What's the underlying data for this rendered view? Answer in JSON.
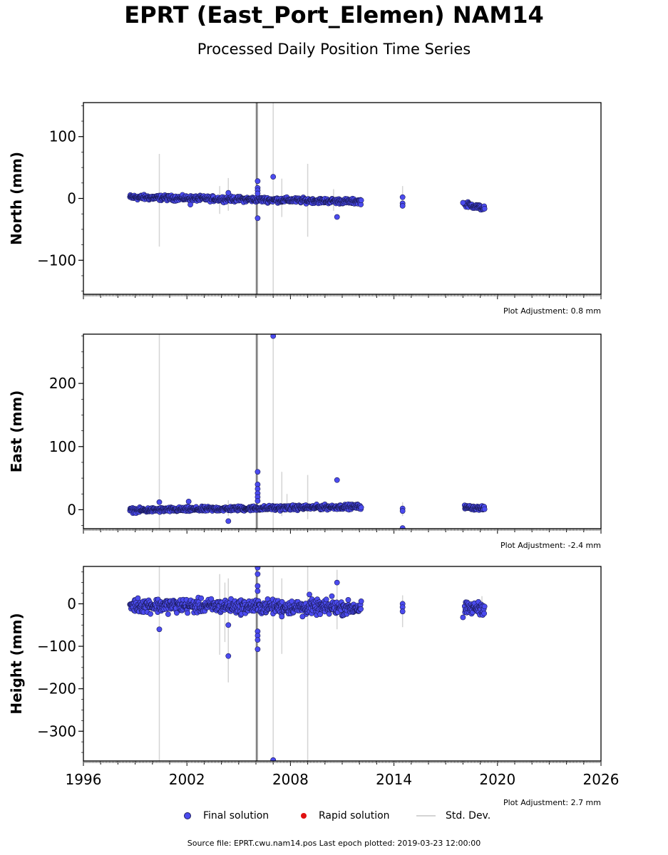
{
  "title": "EPRT (East_Port_Elemen) NAM14",
  "subtitle": "Processed Daily Position Time Series",
  "legend": {
    "final": "Final solution",
    "rapid": "Rapid solution",
    "std": "Std. Dev."
  },
  "footer": "Source file: EPRT.cwu.nam14.pos  Last epoch plotted: 2019-03-23 12:00:00",
  "colors": {
    "final_fill": "#4b4bef",
    "final_edge": "#1a1a55",
    "rapid": "#e01010",
    "std_dev": "#d4d4d4"
  },
  "chart_data": [
    {
      "type": "scatter",
      "ylabel": "North (mm)",
      "adjustment": "Plot Adjustment: 0.8 mm",
      "xlim": [
        1996,
        2026
      ],
      "ylim": [
        -155,
        155
      ],
      "yticks": [
        -100,
        0,
        100
      ],
      "ytick_labels": [
        "−100",
        "0",
        "100"
      ],
      "segments": [
        {
          "start": 1998.7,
          "end": 2012.1,
          "y0": 2,
          "y1": -5,
          "noise": 2.0
        },
        {
          "start": 2018.1,
          "end": 2019.25,
          "y0": -9,
          "y1": -16,
          "noise": 2.0
        }
      ],
      "outliers": [
        [
          2006.1,
          28
        ],
        [
          2006.1,
          17
        ],
        [
          2006.1,
          13
        ],
        [
          2006.1,
          8
        ],
        [
          2006.1,
          -32
        ],
        [
          2007.0,
          35
        ],
        [
          2010.7,
          -30
        ],
        [
          2014.5,
          2
        ],
        [
          2014.5,
          -8
        ],
        [
          2014.5,
          -12
        ],
        [
          2004.4,
          9
        ],
        [
          2002.2,
          -10
        ],
        [
          2018.0,
          -7
        ]
      ],
      "errorbars": [
        [
          2000.4,
          -78,
          72
        ],
        [
          2004.4,
          -20,
          33
        ],
        [
          2006.0,
          -155,
          155
        ],
        [
          2006.05,
          -150,
          150
        ],
        [
          2006.1,
          -155,
          155
        ],
        [
          2007.0,
          -155,
          155
        ],
        [
          2007.5,
          -30,
          32
        ],
        [
          2009.0,
          -62,
          56
        ],
        [
          2014.5,
          -3,
          20
        ],
        [
          2003.9,
          -25,
          20
        ],
        [
          2010.5,
          -20,
          15
        ]
      ]
    },
    {
      "type": "scatter",
      "ylabel": "East (mm)",
      "adjustment": "Plot Adjustment: -2.4 mm",
      "xlim": [
        1996,
        2026
      ],
      "ylim": [
        -30,
        278
      ],
      "yticks": [
        0,
        100,
        200
      ],
      "ytick_labels": [
        "0",
        "100",
        "200"
      ],
      "segments": [
        {
          "start": 1998.7,
          "end": 2012.1,
          "y0": -1,
          "y1": 5,
          "noise": 1.8
        },
        {
          "start": 2018.1,
          "end": 2019.25,
          "y0": 4,
          "y1": 2,
          "noise": 1.5
        }
      ],
      "outliers": [
        [
          2007.0,
          275
        ],
        [
          2006.1,
          60
        ],
        [
          2006.1,
          40
        ],
        [
          2006.1,
          33
        ],
        [
          2006.1,
          26
        ],
        [
          2006.1,
          20
        ],
        [
          2006.1,
          14
        ],
        [
          2010.7,
          47
        ],
        [
          2000.4,
          12
        ],
        [
          2002.1,
          13
        ],
        [
          2004.4,
          -18
        ],
        [
          2014.5,
          2
        ],
        [
          2014.5,
          -2
        ],
        [
          2014.5,
          -29
        ]
      ],
      "errorbars": [
        [
          2000.4,
          -30,
          278
        ],
        [
          2006.0,
          -30,
          278
        ],
        [
          2006.05,
          -30,
          240
        ],
        [
          2006.1,
          -30,
          278
        ],
        [
          2007.0,
          -30,
          278
        ],
        [
          2007.5,
          -10,
          60
        ],
        [
          2009.0,
          -15,
          55
        ],
        [
          2007.8,
          -5,
          25
        ],
        [
          2014.5,
          -10,
          12
        ],
        [
          2004.4,
          -10,
          15
        ]
      ]
    },
    {
      "type": "scatter",
      "ylabel": "Height (mm)",
      "adjustment": "Plot Adjustment: 2.7 mm",
      "xlim": [
        1996,
        2026
      ],
      "ylim": [
        -370,
        88
      ],
      "yticks": [
        -300,
        -200,
        -100,
        0
      ],
      "ytick_labels": [
        "−300",
        "−200",
        "−100",
        "0"
      ],
      "xticks": [
        1996,
        2002,
        2008,
        2014,
        2020,
        2026
      ],
      "xtick_labels": [
        "1996",
        "2002",
        "2008",
        "2014",
        "2020",
        "2026"
      ],
      "segments": [
        {
          "start": 1998.7,
          "end": 2012.1,
          "y0": -3,
          "y1": -10,
          "noise": 8.0
        },
        {
          "start": 2018.1,
          "end": 2019.25,
          "y0": -12,
          "y1": -10,
          "noise": 7.0
        }
      ],
      "outliers": [
        [
          2006.1,
          85
        ],
        [
          2006.1,
          70
        ],
        [
          2006.1,
          42
        ],
        [
          2006.1,
          30
        ],
        [
          2006.1,
          -65
        ],
        [
          2006.1,
          -75
        ],
        [
          2006.1,
          -85
        ],
        [
          2006.1,
          -107
        ],
        [
          2007.0,
          -368
        ],
        [
          2000.4,
          -60
        ],
        [
          2004.4,
          -50
        ],
        [
          2004.4,
          -123
        ],
        [
          2010.7,
          50
        ],
        [
          2010.4,
          18
        ],
        [
          2009.1,
          22
        ],
        [
          2014.5,
          0
        ],
        [
          2014.5,
          -8
        ],
        [
          2014.5,
          -18
        ],
        [
          2018.0,
          -32
        ],
        [
          2007.5,
          -30
        ],
        [
          2008.7,
          -30
        ]
      ],
      "errorbars": [
        [
          2000.4,
          -370,
          88
        ],
        [
          2006.0,
          -370,
          88
        ],
        [
          2006.05,
          -370,
          88
        ],
        [
          2006.1,
          -370,
          88
        ],
        [
          2007.0,
          -370,
          88
        ],
        [
          2004.4,
          -185,
          60
        ],
        [
          2003.9,
          -120,
          70
        ],
        [
          2007.5,
          -118,
          60
        ],
        [
          2009.0,
          -370,
          88
        ],
        [
          2010.7,
          -60,
          80
        ],
        [
          2014.5,
          -55,
          20
        ],
        [
          2019.1,
          -30,
          18
        ],
        [
          2004.2,
          -90,
          50
        ]
      ]
    }
  ]
}
